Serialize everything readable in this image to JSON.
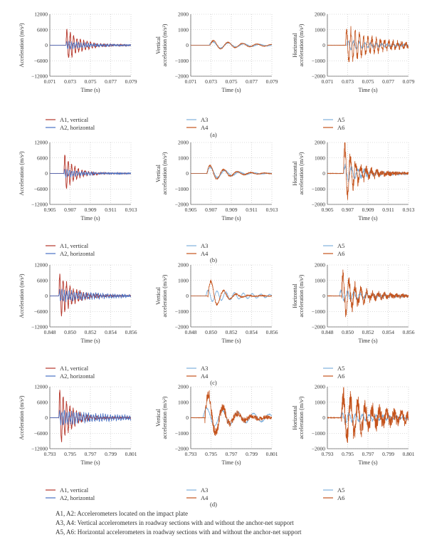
{
  "chart_data": [
    {
      "panel": "(a)",
      "charts": [
        {
          "type": "line",
          "xlabel": "Time (s)",
          "ylabel": [
            "Acceleration (m/s²)"
          ],
          "xlim": [
            0.071,
            0.079
          ],
          "xticks": [
            "0.071",
            "0.073",
            "0.075",
            "0.077",
            "0.079"
          ],
          "ylim": [
            -12000,
            12000
          ],
          "yticks": [
            "12000",
            "6000",
            "0",
            "−6000",
            "−12000"
          ],
          "grid": true,
          "series": [
            {
              "name": "A1, vertical",
              "color": "#b5362a",
              "t0": 0.0726,
              "amp": 6500,
              "tau": 0.0013,
              "freq": 3000,
              "noise": 0.12,
              "seed": 11
            },
            {
              "name": "A2, horizontal",
              "color": "#4a72c4",
              "t0": 0.0726,
              "amp": 1500,
              "tau": 0.0022,
              "freq": 4200,
              "noise": 0.4,
              "seed": 12
            }
          ]
        },
        {
          "type": "line",
          "xlabel": "Time (s)",
          "ylabel": [
            "Vertical",
            "acceleration (m/s²)"
          ],
          "xlim": [
            0.071,
            0.079
          ],
          "xticks": [
            "0.071",
            "0.073",
            "0.075",
            "0.077",
            "0.079"
          ],
          "ylim": [
            -2000,
            2000
          ],
          "yticks": [
            "2000",
            "1000",
            "0",
            "−1000",
            "−2000"
          ],
          "grid": true,
          "series": [
            {
              "name": "A3",
              "color": "#7eb0dc",
              "t0": 0.0728,
              "amp": 250,
              "tau": 0.0035,
              "freq": 650,
              "noise": 0.08,
              "seed": 21
            },
            {
              "name": "A4",
              "color": "#c4531c",
              "t0": 0.0729,
              "amp": 320,
              "tau": 0.0033,
              "freq": 700,
              "noise": 0.08,
              "seed": 22
            }
          ]
        },
        {
          "type": "line",
          "xlabel": "Time (s)",
          "ylabel": [
            "Horizontal",
            "acceleration (m/s²)"
          ],
          "xlim": [
            0.071,
            0.079
          ],
          "xticks": [
            "0.071",
            "0.073",
            "0.075",
            "0.077",
            "0.079"
          ],
          "ylim": [
            -2000,
            2000
          ],
          "yticks": [
            "2000",
            "1000",
            "0",
            "−1000",
            "−2000"
          ],
          "grid": true,
          "series": [
            {
              "name": "A5",
              "color": "#7eb0dc",
              "t0": 0.0729,
              "amp": 300,
              "tau": 0.003,
              "freq": 1800,
              "noise": 0.3,
              "seed": 31
            },
            {
              "name": "A6",
              "color": "#c4531c",
              "t0": 0.0728,
              "amp": 1150,
              "tau": 0.0028,
              "freq": 2400,
              "noise": 0.25,
              "seed": 32
            }
          ]
        }
      ]
    },
    {
      "panel": "(b)",
      "charts": [
        {
          "type": "line",
          "xlabel": "Time (s)",
          "ylabel": [
            "Acceleration (m/s²)"
          ],
          "xlim": [
            0.905,
            0.913
          ],
          "xticks": [
            "0.905",
            "0.907",
            "0.909",
            "0.911",
            "0.913"
          ],
          "ylim": [
            -12000,
            12000
          ],
          "yticks": [
            "12000",
            "6000",
            "0",
            "−6000",
            "−12000"
          ],
          "grid": true,
          "series": [
            {
              "name": "A1, vertical",
              "color": "#b5362a",
              "t0": 0.9064,
              "amp": 8000,
              "tau": 0.0009,
              "freq": 3000,
              "noise": 0.12,
              "seed": 41
            },
            {
              "name": "A2, horizontal",
              "color": "#4a72c4",
              "t0": 0.9064,
              "amp": 1400,
              "tau": 0.002,
              "freq": 4200,
              "noise": 0.4,
              "seed": 42
            }
          ]
        },
        {
          "type": "line",
          "xlabel": "Time (s)",
          "ylabel": [
            "Vertical",
            "acceleration (m/s²)"
          ],
          "xlim": [
            0.905,
            0.913
          ],
          "xticks": [
            "0.905",
            "0.907",
            "0.909",
            "0.911",
            "0.913"
          ],
          "ylim": [
            -2000,
            2000
          ],
          "yticks": [
            "2000",
            "1000",
            "0",
            "−1000",
            "−2000"
          ],
          "grid": true,
          "series": [
            {
              "name": "A3",
              "color": "#7eb0dc",
              "t0": 0.9066,
              "amp": 450,
              "tau": 0.002,
              "freq": 700,
              "noise": 0.08,
              "seed": 51
            },
            {
              "name": "A4",
              "color": "#c4531c",
              "t0": 0.9066,
              "amp": 620,
              "tau": 0.0018,
              "freq": 750,
              "noise": 0.08,
              "seed": 52
            }
          ]
        },
        {
          "type": "line",
          "xlabel": "Time (s)",
          "ylabel": [
            "Horizontal",
            "acceleration (m/s²)"
          ],
          "xlim": [
            0.905,
            0.913
          ],
          "xticks": [
            "0.905",
            "0.907",
            "0.909",
            "0.911",
            "0.913"
          ],
          "ylim": [
            -2000,
            2000
          ],
          "yticks": [
            "2000",
            "1000",
            "0",
            "−1000",
            "−2000"
          ],
          "grid": true,
          "series": [
            {
              "name": "A5",
              "color": "#7eb0dc",
              "t0": 0.9066,
              "amp": 500,
              "tau": 0.0022,
              "freq": 1600,
              "noise": 0.3,
              "seed": 61
            },
            {
              "name": "A6",
              "color": "#c4531c",
              "t0": 0.9066,
              "amp": 1900,
              "tau": 0.0012,
              "freq": 1900,
              "noise": 0.25,
              "seed": 62
            }
          ]
        }
      ]
    },
    {
      "panel": "(c)",
      "charts": [
        {
          "type": "line",
          "xlabel": "Time (s)",
          "ylabel": [
            "Acceleration (m/s²)"
          ],
          "xlim": [
            0.848,
            0.856
          ],
          "xticks": [
            "0.848",
            "0.850",
            "0.852",
            "0.854",
            "0.856"
          ],
          "ylim": [
            -12000,
            12000
          ],
          "yticks": [
            "12000",
            "6000",
            "0",
            "−6000",
            "−12000"
          ],
          "grid": true,
          "series": [
            {
              "name": "A1, vertical",
              "color": "#b5362a",
              "t0": 0.8489,
              "amp": 9000,
              "tau": 0.0012,
              "freq": 3000,
              "noise": 0.12,
              "seed": 71
            },
            {
              "name": "A2, horizontal",
              "color": "#4a72c4",
              "t0": 0.8489,
              "amp": 2200,
              "tau": 0.0035,
              "freq": 4200,
              "noise": 0.4,
              "seed": 72
            }
          ]
        },
        {
          "type": "line",
          "xlabel": "Time (s)",
          "ylabel": [
            "Vertical",
            "acceleration (m/s²)"
          ],
          "xlim": [
            0.848,
            0.856
          ],
          "xticks": [
            "0.848",
            "0.850",
            "0.852",
            "0.854",
            "0.856"
          ],
          "ylim": [
            -2000,
            2000
          ],
          "yticks": [
            "2000",
            "1000",
            "0",
            "−1000",
            "−2000"
          ],
          "grid": true,
          "series": [
            {
              "name": "A3",
              "color": "#7eb0dc",
              "t0": 0.8495,
              "amp": 400,
              "tau": 0.0045,
              "freq": 1150,
              "noise": 0.05,
              "seed": 81
            },
            {
              "name": "A4",
              "color": "#c4531c",
              "t0": 0.8497,
              "amp": 1200,
              "tau": 0.0012,
              "freq": 800,
              "noise": 0.08,
              "seed": 82
            }
          ]
        },
        {
          "type": "line",
          "xlabel": "Time (s)",
          "ylabel": [
            "Horizontal",
            "acceleration (m/s²)"
          ],
          "xlim": [
            0.848,
            0.856
          ],
          "xticks": [
            "0.848",
            "0.850",
            "0.852",
            "0.854",
            "0.856"
          ],
          "ylim": [
            -2000,
            2000
          ],
          "yticks": [
            "2000",
            "1000",
            "0",
            "−1000",
            "−2000"
          ],
          "grid": true,
          "series": [
            {
              "name": "A5",
              "color": "#7eb0dc",
              "t0": 0.8492,
              "amp": 350,
              "tau": 0.003,
              "freq": 1600,
              "noise": 0.3,
              "seed": 91
            },
            {
              "name": "A6",
              "color": "#c4531c",
              "t0": 0.8494,
              "amp": 1450,
              "tau": 0.0015,
              "freq": 1700,
              "noise": 0.3,
              "seed": 92
            }
          ]
        }
      ]
    },
    {
      "panel": "(d)",
      "charts": [
        {
          "type": "line",
          "xlabel": "Time (s)",
          "ylabel": [
            "Acceleration (m/s²)"
          ],
          "xlim": [
            0.793,
            0.801
          ],
          "xticks": [
            "0.793",
            "0.795",
            "0.797",
            "0.799",
            "0.801"
          ],
          "ylim": [
            -12000,
            12000
          ],
          "yticks": [
            "12000",
            "6000",
            "0",
            "−6000",
            "−12000"
          ],
          "grid": true,
          "series": [
            {
              "name": "A1, vertical",
              "color": "#b5362a",
              "t0": 0.7939,
              "amp": 11500,
              "tau": 0.0011,
              "freq": 3000,
              "noise": 0.12,
              "seed": 101
            },
            {
              "name": "A2, horizontal",
              "color": "#4a72c4",
              "t0": 0.7939,
              "amp": 2500,
              "tau": 0.0045,
              "freq": 4200,
              "noise": 0.4,
              "seed": 102
            }
          ]
        },
        {
          "type": "line",
          "xlabel": "Time (s)",
          "ylabel": [
            "Vertical",
            "acceleration (m/s²)"
          ],
          "xlim": [
            0.793,
            0.801
          ],
          "xticks": [
            "0.793",
            "0.795",
            "0.797",
            "0.799",
            "0.801"
          ],
          "ylim": [
            -2000,
            2000
          ],
          "yticks": [
            "2000",
            "1000",
            "0",
            "−1000",
            "−2000"
          ],
          "grid": true,
          "series": [
            {
              "name": "A3",
              "color": "#7eb0dc",
              "t0": 0.7942,
              "amp": 650,
              "tau": 0.006,
              "freq": 650,
              "noise": 0.05,
              "seed": 111
            },
            {
              "name": "A4",
              "color": "#c4531c",
              "t0": 0.7944,
              "amp": 1950,
              "tau": 0.0016,
              "freq": 700,
              "noise": 0.2,
              "seed": 112
            }
          ]
        },
        {
          "type": "line",
          "xlabel": "Time (s)",
          "ylabel": [
            "Horizontal",
            "acceleration (m/s²)"
          ],
          "xlim": [
            0.793,
            0.801
          ],
          "xticks": [
            "0.793",
            "0.795",
            "0.797",
            "0.799",
            "0.801"
          ],
          "ylim": [
            -2000,
            2000
          ],
          "yticks": [
            "2000",
            "1000",
            "0",
            "−1000",
            "−2000"
          ],
          "grid": true,
          "series": [
            {
              "name": "A5",
              "color": "#7eb0dc",
              "t0": 0.7943,
              "amp": 350,
              "tau": 0.004,
              "freq": 1500,
              "noise": 0.3,
              "seed": 121
            },
            {
              "name": "A6",
              "color": "#c4531c",
              "t0": 0.7944,
              "amp": 1500,
              "tau": 0.003,
              "freq": 1400,
              "noise": 0.45,
              "seed": 122
            }
          ]
        }
      ]
    }
  ],
  "footer": {
    "line1": "A1, A2: Accelerometers located on the impact plate",
    "line2": "A3, A4: Vertical accelerometers in roadway sections with and without the anchor-net support",
    "line3": "A5, A6: Horizontal accelerometers in roadway sections with and without the anchor-net support"
  }
}
